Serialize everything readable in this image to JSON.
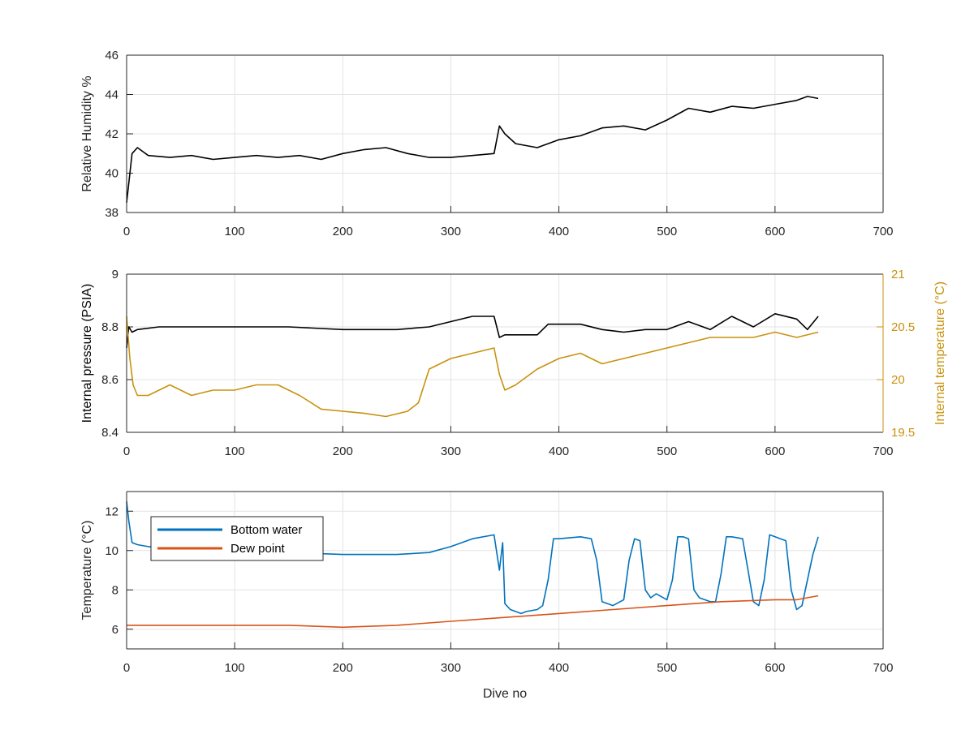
{
  "chart_data": [
    {
      "type": "line",
      "panel": "top",
      "xlabel": "",
      "ylabel": "Relative Humidity %",
      "xlim": [
        0,
        700
      ],
      "ylim": [
        38,
        46
      ],
      "xticks": [
        "0",
        "100",
        "200",
        "300",
        "400",
        "500",
        "600",
        "700"
      ],
      "yticks": [
        "38",
        "40",
        "42",
        "44",
        "46"
      ],
      "grid": true,
      "series": [
        {
          "color": "#000000",
          "x": [
            0,
            2,
            5,
            10,
            20,
            40,
            60,
            80,
            100,
            120,
            140,
            160,
            180,
            200,
            220,
            240,
            260,
            280,
            300,
            320,
            340,
            345,
            350,
            360,
            380,
            400,
            420,
            440,
            460,
            480,
            500,
            520,
            540,
            560,
            580,
            600,
            620,
            630,
            640
          ],
          "y": [
            38.5,
            39.5,
            41.0,
            41.3,
            40.9,
            40.8,
            40.9,
            40.7,
            40.8,
            40.9,
            40.8,
            40.9,
            40.7,
            41.0,
            41.2,
            41.3,
            41.0,
            40.8,
            40.8,
            40.9,
            41.0,
            42.4,
            42.0,
            41.5,
            41.3,
            41.7,
            41.9,
            42.3,
            42.4,
            42.2,
            42.7,
            43.3,
            43.1,
            43.4,
            43.3,
            43.5,
            43.7,
            43.9,
            43.8
          ]
        }
      ]
    },
    {
      "type": "line",
      "panel": "middle",
      "xlabel": "",
      "ylabel": "Internal pressure (PSIA)",
      "ylabel_right": "Internal temperature (°C)",
      "xlim": [
        0,
        700
      ],
      "ylim": [
        8.4,
        9.0
      ],
      "ylim_right": [
        19.5,
        21.0
      ],
      "xticks": [
        "0",
        "100",
        "200",
        "300",
        "400",
        "500",
        "600",
        "700"
      ],
      "yticks": [
        "8.4",
        "8.6",
        "8.8",
        "9"
      ],
      "yticks_right": [
        "19.5",
        "20",
        "20.5",
        "21"
      ],
      "grid": true,
      "series": [
        {
          "axis": "left",
          "color": "#000000",
          "x": [
            0,
            2,
            5,
            10,
            30,
            60,
            100,
            150,
            200,
            250,
            280,
            300,
            320,
            340,
            345,
            350,
            380,
            390,
            420,
            440,
            460,
            480,
            500,
            520,
            540,
            560,
            580,
            600,
            620,
            630,
            640
          ],
          "y": [
            8.72,
            8.8,
            8.78,
            8.79,
            8.8,
            8.8,
            8.8,
            8.8,
            8.79,
            8.79,
            8.8,
            8.82,
            8.84,
            8.84,
            8.76,
            8.77,
            8.77,
            8.81,
            8.81,
            8.79,
            8.78,
            8.79,
            8.79,
            8.82,
            8.79,
            8.84,
            8.8,
            8.85,
            8.83,
            8.79,
            8.84
          ]
        },
        {
          "axis": "right",
          "color": "#C8920E",
          "x": [
            0,
            3,
            6,
            10,
            20,
            40,
            60,
            80,
            100,
            120,
            140,
            160,
            180,
            200,
            220,
            240,
            260,
            270,
            280,
            290,
            300,
            320,
            340,
            345,
            350,
            360,
            380,
            400,
            420,
            440,
            460,
            480,
            500,
            520,
            540,
            560,
            580,
            600,
            620,
            640
          ],
          "y": [
            20.6,
            20.2,
            19.95,
            19.85,
            19.85,
            19.95,
            19.85,
            19.9,
            19.9,
            19.95,
            19.95,
            19.85,
            19.72,
            19.7,
            19.68,
            19.65,
            19.7,
            19.78,
            20.1,
            20.15,
            20.2,
            20.25,
            20.3,
            20.05,
            19.9,
            19.95,
            20.1,
            20.2,
            20.25,
            20.15,
            20.2,
            20.25,
            20.3,
            20.35,
            20.4,
            20.4,
            20.4,
            20.45,
            20.4,
            20.45
          ]
        }
      ]
    },
    {
      "type": "line",
      "panel": "bottom",
      "xlabel": "Dive no",
      "ylabel": "Temperature (°C)",
      "xlim": [
        0,
        700
      ],
      "ylim": [
        5,
        13
      ],
      "xticks": [
        "0",
        "100",
        "200",
        "300",
        "400",
        "500",
        "600",
        "700"
      ],
      "yticks": [
        "6",
        "8",
        "10",
        "12"
      ],
      "grid": true,
      "legend": "top-left",
      "series": [
        {
          "name": "Bottom water",
          "color": "#0072BD",
          "x": [
            0,
            2,
            5,
            10,
            20,
            50,
            100,
            150,
            200,
            250,
            280,
            300,
            320,
            340,
            345,
            348,
            350,
            355,
            360,
            365,
            370,
            380,
            385,
            390,
            395,
            400,
            420,
            430,
            435,
            440,
            450,
            460,
            465,
            470,
            475,
            480,
            485,
            490,
            500,
            505,
            510,
            515,
            520,
            525,
            530,
            540,
            545,
            550,
            555,
            560,
            570,
            575,
            580,
            585,
            590,
            595,
            600,
            605,
            610,
            615,
            620,
            625,
            630,
            635,
            640
          ],
          "y": [
            12.5,
            11.5,
            10.4,
            10.3,
            10.2,
            10.1,
            10.0,
            9.9,
            9.8,
            9.8,
            9.9,
            10.2,
            10.6,
            10.8,
            9.0,
            10.4,
            7.3,
            7.0,
            6.9,
            6.8,
            6.9,
            7.0,
            7.2,
            8.5,
            10.6,
            10.6,
            10.7,
            10.6,
            9.5,
            7.4,
            7.2,
            7.5,
            9.5,
            10.6,
            10.5,
            8.0,
            7.6,
            7.8,
            7.5,
            8.5,
            10.7,
            10.7,
            10.6,
            8.0,
            7.6,
            7.4,
            7.4,
            8.8,
            10.7,
            10.7,
            10.6,
            9.0,
            7.4,
            7.2,
            8.5,
            10.8,
            10.7,
            10.6,
            10.5,
            8.0,
            7.0,
            7.2,
            8.5,
            9.8,
            10.7
          ]
        },
        {
          "name": "Dew point",
          "color": "#D95319",
          "x": [
            0,
            50,
            100,
            150,
            200,
            250,
            300,
            350,
            400,
            450,
            500,
            550,
            600,
            620,
            640
          ],
          "y": [
            6.2,
            6.2,
            6.2,
            6.2,
            6.1,
            6.2,
            6.4,
            6.6,
            6.8,
            7.0,
            7.2,
            7.4,
            7.5,
            7.5,
            7.7
          ]
        }
      ]
    }
  ]
}
